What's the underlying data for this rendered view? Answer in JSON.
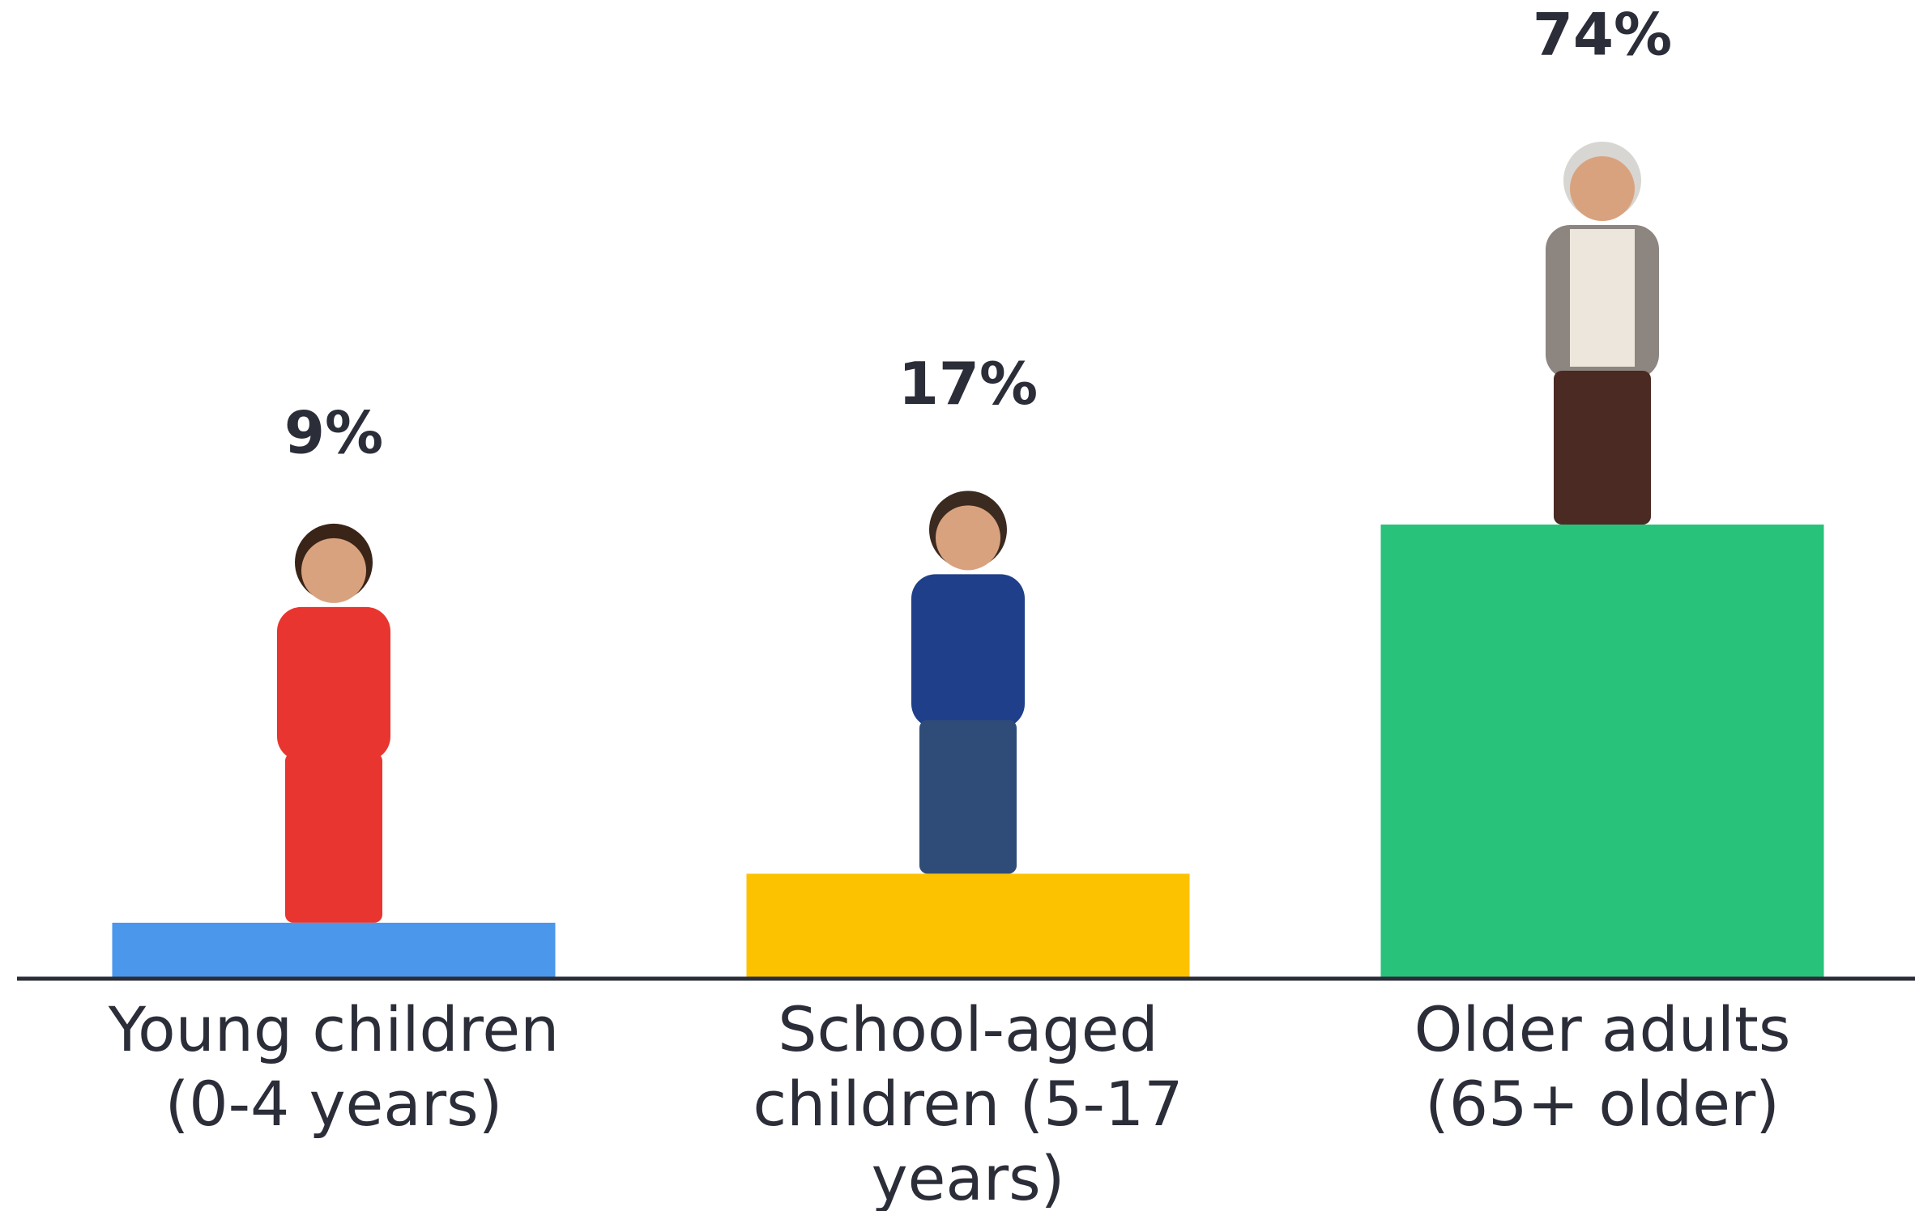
{
  "chart_data": {
    "type": "bar",
    "categories": [
      "Young children (0-4 years)",
      "School-aged children (5-17 years)",
      "Older adults (65+ older)"
    ],
    "values": [
      9,
      17,
      74
    ],
    "value_labels": [
      "9%",
      "17%",
      "74%"
    ],
    "colors": [
      "#4a97ec",
      "#fcc200",
      "#29c27b"
    ]
  }
}
